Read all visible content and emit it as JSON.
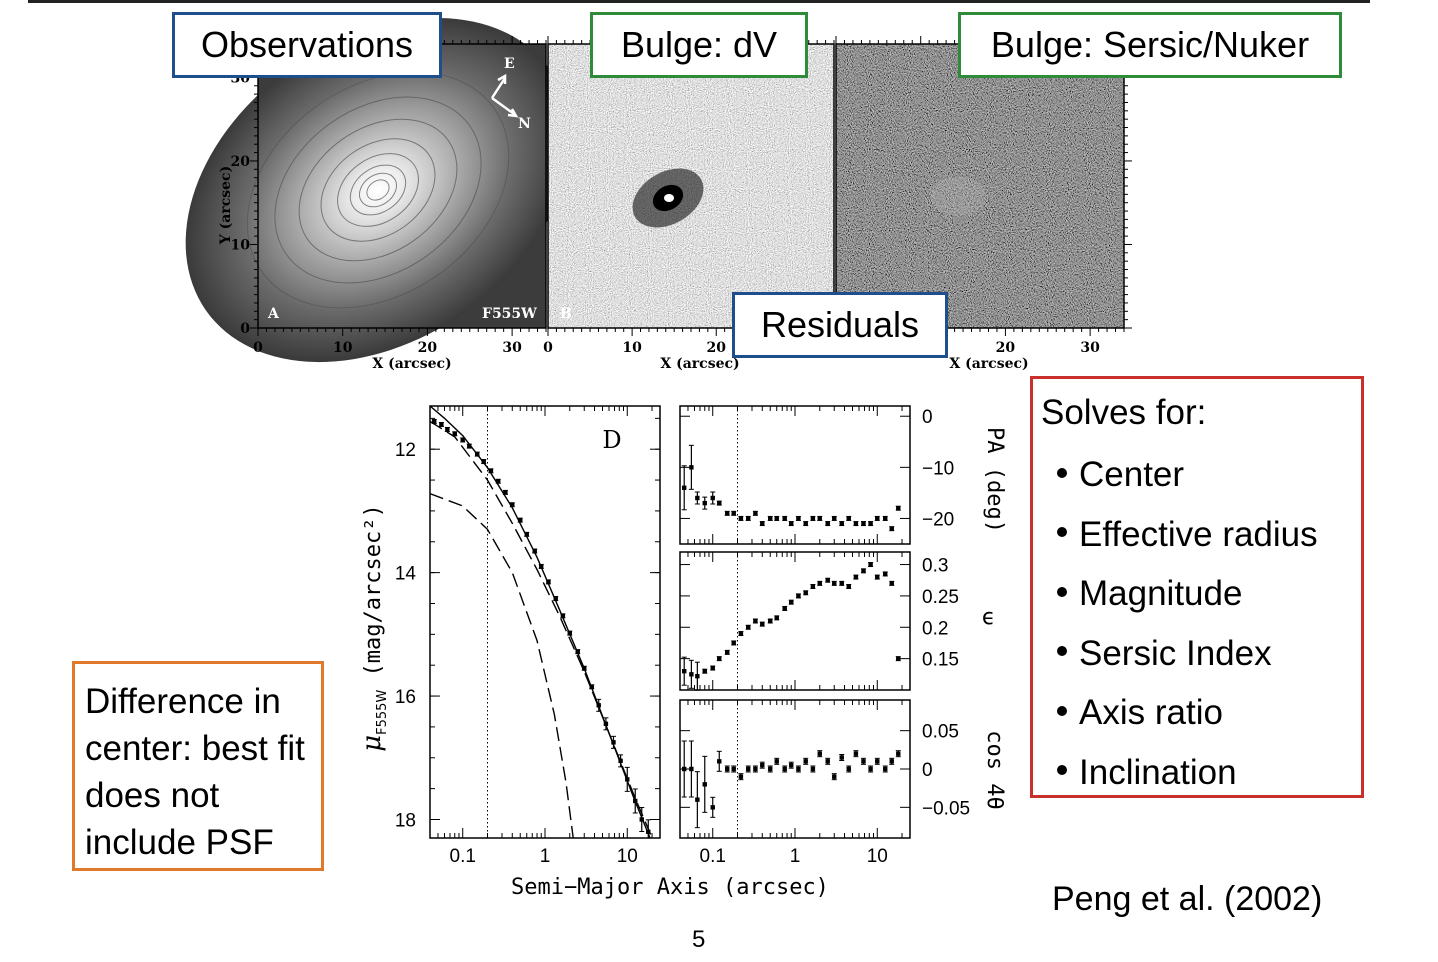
{
  "labels": {
    "observations": "Observations",
    "bulge_dv": "Bulge: dV",
    "bulge_sersic": "Bulge: Sersic/Nuker",
    "residuals": "Residuals"
  },
  "image_panels": {
    "panel_a_letter": "A",
    "panel_a_filter": "F555W",
    "panel_b_letter": "B",
    "compass_e": "E",
    "compass_n": "N",
    "y_axis_label": "Y (arcsec)",
    "x_axis_label": "X (arcsec)",
    "x_ticks": [
      "0",
      "10",
      "20",
      "30"
    ],
    "y_ticks": [
      "0",
      "10",
      "20",
      "30"
    ]
  },
  "solves": {
    "heading": "Solves for:",
    "items": [
      "Center",
      "Effective radius",
      "Magnitude",
      "Sersic Index",
      "Axis ratio",
      "Inclination"
    ]
  },
  "difference_note": "Difference in center: best fit does not include PSF",
  "credit": "Peng et al. (2002)",
  "page_number": "5",
  "chart_data": {
    "type": "line",
    "panel_label": "D",
    "xlabel": "Semi−Major Axis (arcsec)",
    "x_scale": "log",
    "x_ticks": [
      "0.1",
      "1",
      "10"
    ],
    "profile": {
      "ylabel_main": "μ",
      "ylabel_sub": "F555W",
      "ylabel_rest": " (mag/arcsec²)",
      "y_ticks": [
        "12",
        "14",
        "16",
        "18"
      ],
      "ylim": [
        18.3,
        11.3
      ],
      "xlim": [
        0.04,
        25
      ],
      "data_x": [
        0.045,
        0.055,
        0.065,
        0.08,
        0.1,
        0.12,
        0.15,
        0.18,
        0.22,
        0.27,
        0.33,
        0.4,
        0.5,
        0.6,
        0.75,
        0.9,
        1.1,
        1.35,
        1.65,
        2.0,
        2.5,
        3.0,
        3.7,
        4.5,
        5.5,
        6.8,
        8.3,
        10,
        12.5,
        15,
        18
      ],
      "data_y": [
        11.55,
        11.6,
        11.68,
        11.75,
        11.85,
        11.95,
        12.08,
        12.2,
        12.35,
        12.52,
        12.7,
        12.9,
        13.15,
        13.38,
        13.65,
        13.9,
        14.15,
        14.42,
        14.7,
        14.98,
        15.28,
        15.55,
        15.85,
        16.15,
        16.45,
        16.75,
        17.05,
        17.35,
        17.7,
        18.0,
        18.2
      ],
      "model_solid": [
        [
          0.04,
          11.3
        ],
        [
          0.06,
          11.5
        ],
        [
          0.1,
          11.78
        ],
        [
          0.2,
          12.3
        ],
        [
          0.4,
          12.95
        ],
        [
          0.8,
          13.75
        ],
        [
          1.5,
          14.6
        ],
        [
          3,
          15.55
        ],
        [
          6,
          16.6
        ],
        [
          12,
          17.65
        ],
        [
          25,
          18.7
        ]
      ],
      "model_dash_long": [
        [
          0.04,
          11.55
        ],
        [
          0.08,
          11.8
        ],
        [
          0.2,
          12.5
        ],
        [
          0.4,
          13.2
        ],
        [
          0.8,
          13.95
        ],
        [
          1.5,
          14.7
        ],
        [
          3,
          15.6
        ],
        [
          6,
          16.6
        ],
        [
          12,
          17.6
        ],
        [
          25,
          18.6
        ]
      ],
      "model_dash_inner": [
        [
          0.04,
          12.72
        ],
        [
          0.1,
          12.92
        ],
        [
          0.2,
          13.3
        ],
        [
          0.4,
          14.0
        ],
        [
          0.8,
          15.1
        ],
        [
          1.3,
          16.3
        ],
        [
          1.8,
          17.4
        ],
        [
          2.3,
          18.5
        ]
      ],
      "psf_line_x": 0.2
    },
    "pa": {
      "ylabel": "PA (deg)",
      "y_ticks": [
        "0",
        "−10",
        "−20"
      ],
      "ylim": [
        -25,
        2
      ],
      "data_x": [
        0.045,
        0.055,
        0.065,
        0.08,
        0.1,
        0.12,
        0.15,
        0.18,
        0.22,
        0.27,
        0.33,
        0.4,
        0.5,
        0.6,
        0.75,
        0.9,
        1.1,
        1.35,
        1.65,
        2.0,
        2.5,
        3.0,
        3.7,
        4.5,
        5.5,
        6.8,
        8.3,
        10,
        12.5,
        15,
        18
      ],
      "data_y": [
        -14,
        -10,
        -16,
        -17,
        -16,
        -17,
        -19,
        -19,
        -20,
        -20,
        -19,
        -21,
        -20,
        -20,
        -20,
        -21,
        -20,
        -21,
        -20,
        -20,
        -21,
        -20,
        -21,
        -20,
        -21,
        -21,
        -21,
        -20,
        -20,
        -22,
        -18
      ]
    },
    "ellipticity": {
      "ylabel": "ϵ",
      "y_ticks": [
        "0.3",
        "0.25",
        "0.2",
        "0.15"
      ],
      "ylim": [
        0.1,
        0.32
      ],
      "data_x": [
        0.045,
        0.055,
        0.065,
        0.08,
        0.1,
        0.12,
        0.15,
        0.18,
        0.22,
        0.27,
        0.33,
        0.4,
        0.5,
        0.6,
        0.75,
        0.9,
        1.1,
        1.35,
        1.65,
        2.0,
        2.5,
        3.0,
        3.7,
        4.5,
        5.5,
        6.8,
        8.3,
        10,
        12.5,
        15,
        18
      ],
      "data_y": [
        0.13,
        0.125,
        0.122,
        0.13,
        0.135,
        0.15,
        0.16,
        0.175,
        0.19,
        0.2,
        0.21,
        0.205,
        0.21,
        0.215,
        0.23,
        0.24,
        0.25,
        0.255,
        0.265,
        0.27,
        0.275,
        0.27,
        0.27,
        0.265,
        0.28,
        0.29,
        0.3,
        0.28,
        0.285,
        0.27,
        0.15
      ]
    },
    "cos4theta": {
      "ylabel": "cos 4θ",
      "y_ticks": [
        "0.05",
        "0",
        "−0.05"
      ],
      "ylim": [
        -0.09,
        0.09
      ],
      "data_x": [
        0.045,
        0.055,
        0.065,
        0.08,
        0.1,
        0.12,
        0.15,
        0.18,
        0.22,
        0.27,
        0.33,
        0.4,
        0.5,
        0.6,
        0.75,
        0.9,
        1.1,
        1.35,
        1.65,
        2.0,
        2.5,
        3.0,
        3.7,
        4.5,
        5.5,
        6.8,
        8.3,
        10,
        12.5,
        15,
        18
      ],
      "data_y": [
        0.0,
        0.0,
        -0.04,
        -0.02,
        -0.05,
        0.01,
        0.0,
        0.0,
        -0.01,
        0.0,
        0.0,
        0.005,
        0.0,
        0.01,
        0.0,
        0.005,
        0.0,
        0.01,
        0.0,
        0.02,
        0.01,
        -0.01,
        0.015,
        0.0,
        0.02,
        0.01,
        0.0,
        0.01,
        0.0,
        0.01,
        0.02
      ]
    }
  }
}
